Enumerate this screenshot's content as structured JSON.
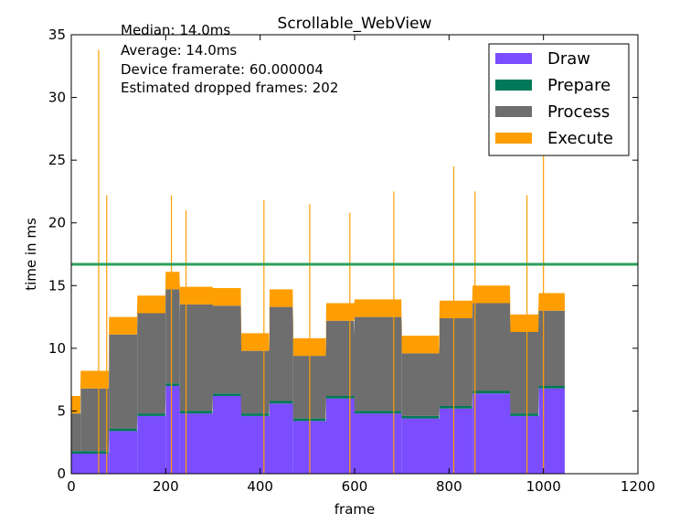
{
  "chart_data": {
    "type": "bar",
    "stacked": true,
    "title": "Scrollable_WebView",
    "xlabel": "frame",
    "ylabel": "time in ms",
    "xlim": [
      0,
      1200
    ],
    "ylim": [
      0,
      35
    ],
    "xticks": [
      0,
      200,
      400,
      600,
      800,
      1000,
      1200
    ],
    "yticks": [
      0,
      5,
      10,
      15,
      20,
      25,
      30,
      35
    ],
    "grid": false,
    "legend_position": "top-right",
    "frame_count": 1045,
    "annotations": [
      "Median: 14.0ms",
      "Average: 14.0ms",
      "Device framerate: 60.000004",
      "Estimated dropped frames: 202"
    ],
    "threshold_line": {
      "y": 16.7,
      "color": "#2ca05a"
    },
    "series": [
      {
        "name": "Draw",
        "color": "#7b4dff",
        "segments": [
          {
            "from": 0,
            "to": 80,
            "level": 1.6
          },
          {
            "from": 80,
            "to": 140,
            "level": 3.4
          },
          {
            "from": 140,
            "to": 200,
            "level": 4.6
          },
          {
            "from": 200,
            "to": 230,
            "level": 7.0
          },
          {
            "from": 230,
            "to": 300,
            "level": 4.8
          },
          {
            "from": 300,
            "to": 360,
            "level": 6.2
          },
          {
            "from": 360,
            "to": 420,
            "level": 4.6
          },
          {
            "from": 420,
            "to": 470,
            "level": 5.6
          },
          {
            "from": 470,
            "to": 540,
            "level": 4.2
          },
          {
            "from": 540,
            "to": 600,
            "level": 6.0
          },
          {
            "from": 600,
            "to": 700,
            "level": 4.8
          },
          {
            "from": 700,
            "to": 780,
            "level": 4.4
          },
          {
            "from": 780,
            "to": 850,
            "level": 5.2
          },
          {
            "from": 850,
            "to": 930,
            "level": 6.4
          },
          {
            "from": 930,
            "to": 990,
            "level": 4.6
          },
          {
            "from": 990,
            "to": 1045,
            "level": 6.8
          }
        ]
      },
      {
        "name": "Prepare",
        "color": "#00785a",
        "segments": [
          {
            "from": 0,
            "to": 1045,
            "level": 0.2
          }
        ]
      },
      {
        "name": "Process",
        "color": "#6e6e6e",
        "segments": [
          {
            "from": 0,
            "to": 20,
            "level": 3.0
          },
          {
            "from": 20,
            "to": 80,
            "level": 5.0
          },
          {
            "from": 80,
            "to": 140,
            "level": 7.5
          },
          {
            "from": 140,
            "to": 200,
            "level": 8.0
          },
          {
            "from": 200,
            "to": 230,
            "level": 7.5
          },
          {
            "from": 230,
            "to": 300,
            "level": 8.5
          },
          {
            "from": 300,
            "to": 360,
            "level": 7.0
          },
          {
            "from": 360,
            "to": 420,
            "level": 5.0
          },
          {
            "from": 420,
            "to": 470,
            "level": 7.5
          },
          {
            "from": 470,
            "to": 540,
            "level": 5.0
          },
          {
            "from": 540,
            "to": 600,
            "level": 6.0
          },
          {
            "from": 600,
            "to": 700,
            "level": 7.5
          },
          {
            "from": 700,
            "to": 780,
            "level": 5.0
          },
          {
            "from": 780,
            "to": 850,
            "level": 7.0
          },
          {
            "from": 850,
            "to": 930,
            "level": 7.0
          },
          {
            "from": 930,
            "to": 990,
            "level": 6.5
          },
          {
            "from": 990,
            "to": 1045,
            "level": 6.0
          }
        ]
      },
      {
        "name": "Execute",
        "color": "#ff9e00",
        "segments": [
          {
            "from": 0,
            "to": 1045,
            "level": 1.4
          }
        ]
      }
    ],
    "spikes": [
      {
        "x": 58,
        "y": 33.8
      },
      {
        "x": 75,
        "y": 22.2
      },
      {
        "x": 212,
        "y": 22.2
      },
      {
        "x": 243,
        "y": 21.0
      },
      {
        "x": 408,
        "y": 21.8
      },
      {
        "x": 505,
        "y": 21.5
      },
      {
        "x": 590,
        "y": 20.8
      },
      {
        "x": 683,
        "y": 22.5
      },
      {
        "x": 810,
        "y": 24.5
      },
      {
        "x": 855,
        "y": 22.5
      },
      {
        "x": 965,
        "y": 22.2
      },
      {
        "x": 1000,
        "y": 25.8
      }
    ]
  }
}
